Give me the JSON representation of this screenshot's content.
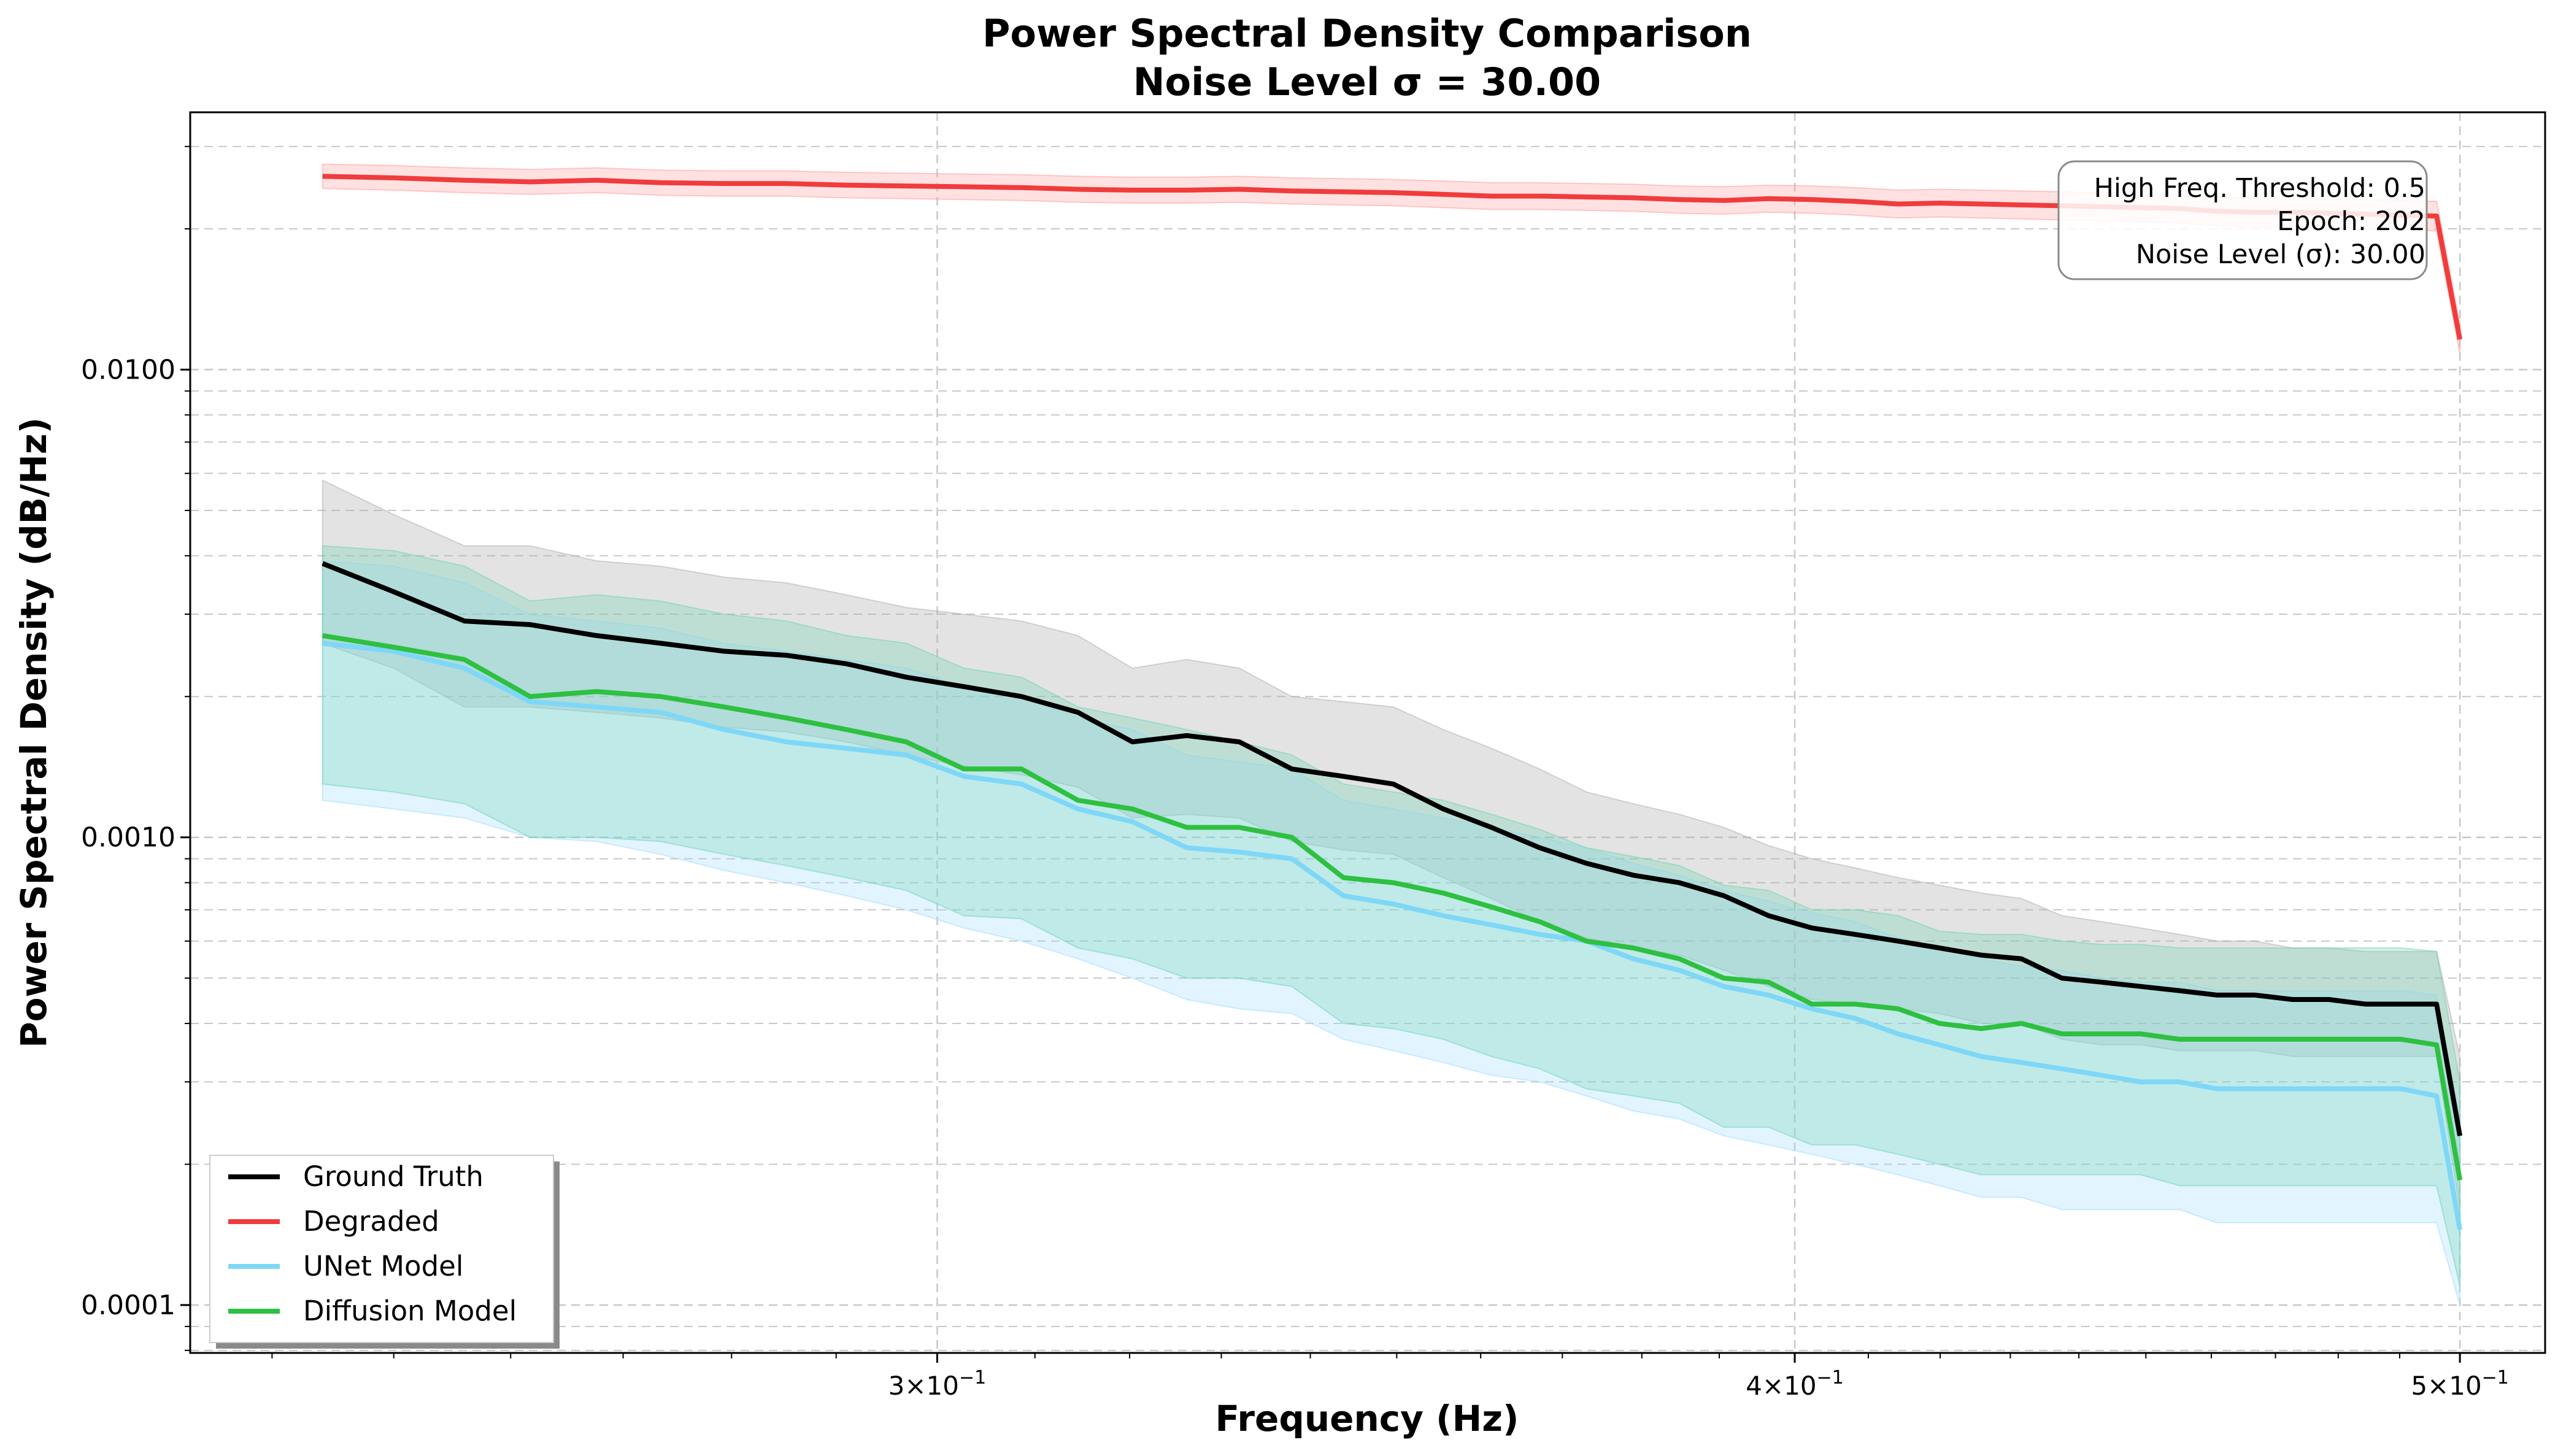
{
  "chart_data": {
    "type": "line",
    "title_line1": "Power Spectral Density Comparison",
    "title_line2": "Noise Level σ = 30.00",
    "xlabel": "Frequency (Hz)",
    "ylabel": "Power Spectral Density (dB/Hz)",
    "xscale": "log",
    "yscale": "log",
    "xlim": [
      0.2335,
      0.5145
    ],
    "ylim": [
      7.9e-05,
      0.0355
    ],
    "grid": true,
    "legend_position": "lower-left",
    "x_ticks": [
      {
        "value": 0.3,
        "base": "3",
        "exp": "−1"
      },
      {
        "value": 0.4,
        "base": "4",
        "exp": "−1"
      },
      {
        "value": 0.5,
        "base": "5",
        "exp": "−1"
      }
    ],
    "y_ticks": [
      {
        "value": 0.01,
        "label": "0.0100"
      },
      {
        "value": 0.001,
        "label": "0.0010"
      },
      {
        "value": 0.0001,
        "label": "0.0001"
      }
    ],
    "info_box": {
      "line1": "High Freq. Threshold: 0.5",
      "line2": "Epoch: 202",
      "line3": "Noise Level (σ): 30.00"
    },
    "x": [
      0.2441,
      0.25,
      0.256,
      0.2617,
      0.2676,
      0.2734,
      0.2793,
      0.2852,
      0.291,
      0.2969,
      0.3027,
      0.3086,
      0.3145,
      0.3203,
      0.3262,
      0.332,
      0.3379,
      0.3438,
      0.3496,
      0.3555,
      0.3613,
      0.3672,
      0.373,
      0.3789,
      0.3848,
      0.3906,
      0.3965,
      0.4023,
      0.4082,
      0.4141,
      0.4199,
      0.4258,
      0.4316,
      0.4375,
      0.4434,
      0.4492,
      0.4551,
      0.4609,
      0.4668,
      0.4727,
      0.4785,
      0.4844,
      0.4902,
      0.4961,
      0.5
    ],
    "series": [
      {
        "name": "Ground Truth",
        "color": "#000000",
        "band_color": "#b0b0b0",
        "band_opacity": 0.35,
        "values": [
          0.00385,
          0.00335,
          0.0029,
          0.00285,
          0.0027,
          0.0026,
          0.0025,
          0.00245,
          0.00235,
          0.0022,
          0.0021,
          0.002,
          0.00185,
          0.0016,
          0.00165,
          0.0016,
          0.0014,
          0.00135,
          0.0013,
          0.00115,
          0.00105,
          0.00095,
          0.00088,
          0.00083,
          0.0008,
          0.00075,
          0.00068,
          0.00064,
          0.00062,
          0.0006,
          0.00058,
          0.00056,
          0.00055,
          0.0005,
          0.00049,
          0.00048,
          0.00047,
          0.00046,
          0.00046,
          0.00045,
          0.00045,
          0.00044,
          0.00044,
          0.00044,
          0.00023
        ],
        "upper": [
          0.0058,
          0.0049,
          0.0042,
          0.0042,
          0.0039,
          0.0038,
          0.0036,
          0.0035,
          0.0033,
          0.0031,
          0.003,
          0.0029,
          0.0027,
          0.0023,
          0.0024,
          0.0023,
          0.002,
          0.00195,
          0.0019,
          0.0017,
          0.00155,
          0.0014,
          0.00125,
          0.00118,
          0.00112,
          0.00105,
          0.00096,
          0.0009,
          0.00086,
          0.00082,
          0.00079,
          0.00076,
          0.00074,
          0.00068,
          0.00066,
          0.00064,
          0.00062,
          0.0006,
          0.0006,
          0.00058,
          0.00058,
          0.00057,
          0.00057,
          0.00057,
          0.00034
        ],
        "lower": [
          0.0026,
          0.0023,
          0.0019,
          0.0019,
          0.00185,
          0.0018,
          0.00172,
          0.00168,
          0.0016,
          0.0015,
          0.00142,
          0.00136,
          0.00128,
          0.0011,
          0.00112,
          0.0011,
          0.00098,
          0.00094,
          0.00092,
          0.00082,
          0.00074,
          0.00066,
          0.00061,
          0.00058,
          0.00056,
          0.00052,
          0.00048,
          0.00045,
          0.00044,
          0.00043,
          0.00042,
          0.0004,
          0.0004,
          0.00037,
          0.00036,
          0.00036,
          0.00035,
          0.00035,
          0.00035,
          0.00034,
          0.00034,
          0.00034,
          0.00034,
          0.00034,
          0.00016
        ]
      },
      {
        "name": "Degraded",
        "color": "#f03c3c",
        "band_color": "#ff9a9a",
        "band_opacity": 0.3,
        "values": [
          0.0259,
          0.0257,
          0.0254,
          0.0252,
          0.0254,
          0.0251,
          0.025,
          0.025,
          0.0248,
          0.0247,
          0.0246,
          0.0245,
          0.0243,
          0.0242,
          0.0242,
          0.0243,
          0.0241,
          0.024,
          0.0239,
          0.0237,
          0.0235,
          0.0235,
          0.0234,
          0.0233,
          0.0231,
          0.023,
          0.0232,
          0.0231,
          0.0229,
          0.0226,
          0.0227,
          0.0226,
          0.0225,
          0.0224,
          0.0223,
          0.0222,
          0.0221,
          0.0218,
          0.0217,
          0.0217,
          0.0216,
          0.0215,
          0.0214,
          0.0213,
          0.0116
        ],
        "upper": [
          0.0275,
          0.0273,
          0.027,
          0.0268,
          0.027,
          0.0267,
          0.0266,
          0.0266,
          0.0264,
          0.0263,
          0.0262,
          0.0261,
          0.0259,
          0.0258,
          0.0258,
          0.0259,
          0.0257,
          0.0256,
          0.0255,
          0.0253,
          0.0251,
          0.0251,
          0.025,
          0.0249,
          0.0247,
          0.0246,
          0.0248,
          0.0247,
          0.0245,
          0.0242,
          0.0243,
          0.0242,
          0.0241,
          0.024,
          0.0239,
          0.0238,
          0.0237,
          0.0234,
          0.0233,
          0.0233,
          0.0232,
          0.0231,
          0.023,
          0.0229,
          0.0125
        ],
        "lower": [
          0.0244,
          0.0242,
          0.0239,
          0.0237,
          0.0239,
          0.0236,
          0.0235,
          0.0235,
          0.0233,
          0.0232,
          0.0231,
          0.023,
          0.0228,
          0.0227,
          0.0227,
          0.0228,
          0.0226,
          0.0225,
          0.0224,
          0.0222,
          0.022,
          0.022,
          0.0219,
          0.0218,
          0.0216,
          0.0215,
          0.0217,
          0.0216,
          0.0214,
          0.0211,
          0.0212,
          0.0211,
          0.021,
          0.0209,
          0.0208,
          0.0207,
          0.0206,
          0.0203,
          0.0202,
          0.0202,
          0.0201,
          0.02,
          0.0199,
          0.0198,
          0.0108
        ]
      },
      {
        "name": "UNet Model",
        "color": "#7fd7f7",
        "band_color": "#9edcff",
        "band_opacity": 0.3,
        "values": [
          0.0026,
          0.0025,
          0.0023,
          0.00195,
          0.0019,
          0.00185,
          0.0017,
          0.0016,
          0.00155,
          0.0015,
          0.00135,
          0.0013,
          0.00115,
          0.00108,
          0.00095,
          0.00093,
          0.0009,
          0.00075,
          0.00072,
          0.00068,
          0.00065,
          0.00062,
          0.0006,
          0.00055,
          0.00052,
          0.00048,
          0.00046,
          0.00043,
          0.00041,
          0.00038,
          0.00036,
          0.00034,
          0.00033,
          0.00032,
          0.00031,
          0.0003,
          0.0003,
          0.00029,
          0.00029,
          0.00029,
          0.00029,
          0.00029,
          0.00029,
          0.00028,
          0.000145
        ],
        "upper": [
          0.0039,
          0.0038,
          0.0035,
          0.003,
          0.0029,
          0.0028,
          0.0026,
          0.0025,
          0.0024,
          0.0023,
          0.0021,
          0.002,
          0.0018,
          0.0017,
          0.0015,
          0.00145,
          0.0014,
          0.0012,
          0.00115,
          0.0011,
          0.00105,
          0.001,
          0.00095,
          0.00088,
          0.00083,
          0.00077,
          0.00073,
          0.00069,
          0.00066,
          0.00061,
          0.00058,
          0.00055,
          0.00053,
          0.00052,
          0.0005,
          0.00049,
          0.00049,
          0.00047,
          0.00047,
          0.00047,
          0.00047,
          0.00047,
          0.00047,
          0.00046,
          0.00025
        ],
        "lower": [
          0.0012,
          0.00115,
          0.0011,
          0.001,
          0.00098,
          0.00092,
          0.00085,
          0.0008,
          0.00075,
          0.0007,
          0.00064,
          0.0006,
          0.00055,
          0.0005,
          0.00045,
          0.00043,
          0.00042,
          0.00037,
          0.00035,
          0.00033,
          0.00031,
          0.0003,
          0.00028,
          0.00026,
          0.00025,
          0.00023,
          0.00022,
          0.00021,
          0.0002,
          0.00019,
          0.00018,
          0.00017,
          0.00017,
          0.00016,
          0.00016,
          0.00016,
          0.00016,
          0.00015,
          0.00015,
          0.00015,
          0.00015,
          0.00015,
          0.00015,
          0.00015,
          0.0001
        ]
      },
      {
        "name": "Diffusion Model",
        "color": "#2ec040",
        "band_color": "#6ed4b0",
        "band_opacity": 0.3,
        "values": [
          0.0027,
          0.00255,
          0.0024,
          0.002,
          0.00205,
          0.002,
          0.0019,
          0.0018,
          0.0017,
          0.0016,
          0.0014,
          0.0014,
          0.0012,
          0.00115,
          0.00105,
          0.00105,
          0.001,
          0.00082,
          0.0008,
          0.00076,
          0.00071,
          0.00066,
          0.0006,
          0.00058,
          0.00055,
          0.0005,
          0.00049,
          0.00044,
          0.00044,
          0.00043,
          0.0004,
          0.00039,
          0.0004,
          0.00038,
          0.00038,
          0.00038,
          0.00037,
          0.00037,
          0.00037,
          0.00037,
          0.00037,
          0.00037,
          0.00037,
          0.00036,
          0.000185
        ],
        "upper": [
          0.0042,
          0.0041,
          0.0038,
          0.0032,
          0.0033,
          0.0032,
          0.003,
          0.0029,
          0.0027,
          0.0026,
          0.0023,
          0.0022,
          0.0019,
          0.0018,
          0.0017,
          0.0016,
          0.0015,
          0.0013,
          0.00125,
          0.0012,
          0.00112,
          0.00104,
          0.00095,
          0.00091,
          0.00087,
          0.00079,
          0.00077,
          0.0007,
          0.0007,
          0.00068,
          0.00063,
          0.00062,
          0.00062,
          0.0006,
          0.00059,
          0.00059,
          0.00058,
          0.00058,
          0.00058,
          0.00058,
          0.00058,
          0.00058,
          0.00058,
          0.00057,
          0.0003
        ],
        "lower": [
          0.0013,
          0.00125,
          0.00118,
          0.001,
          0.001,
          0.00098,
          0.00092,
          0.00087,
          0.00082,
          0.00077,
          0.00068,
          0.00067,
          0.00058,
          0.00055,
          0.0005,
          0.0005,
          0.00048,
          0.0004,
          0.00039,
          0.00037,
          0.00034,
          0.00032,
          0.00029,
          0.00028,
          0.00027,
          0.00024,
          0.00024,
          0.00022,
          0.00022,
          0.00021,
          0.0002,
          0.00019,
          0.00019,
          0.00019,
          0.00019,
          0.00019,
          0.00018,
          0.00018,
          0.00018,
          0.00018,
          0.00018,
          0.00018,
          0.00018,
          0.00018,
          0.00011
        ]
      }
    ]
  }
}
